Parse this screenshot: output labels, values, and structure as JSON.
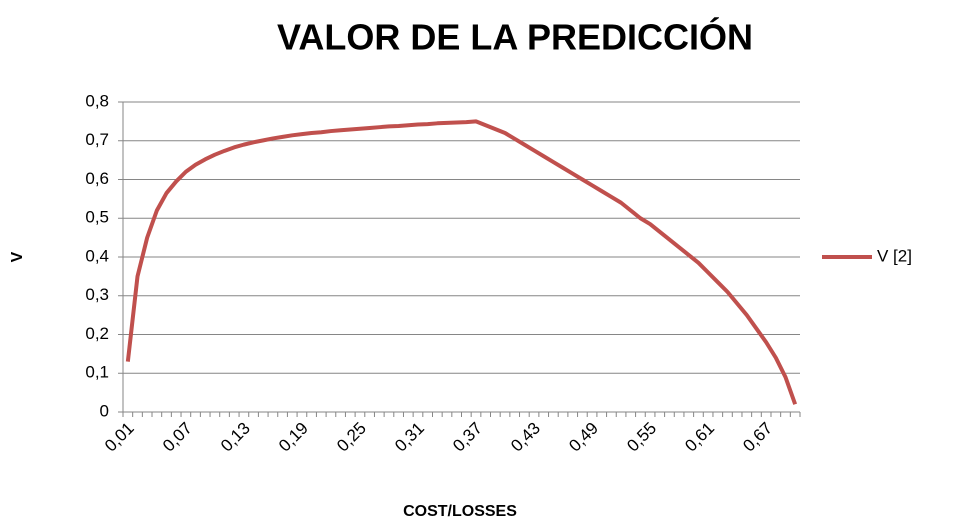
{
  "chart_data": {
    "type": "line",
    "title": "VALOR DE LA PREDICCIÓN",
    "x_label": "COST/LOSSES",
    "y_label": "V",
    "categories": [
      "0,01",
      null,
      null,
      null,
      null,
      null,
      "0,07",
      null,
      null,
      null,
      null,
      null,
      "0,13",
      null,
      null,
      null,
      null,
      null,
      "0,19",
      null,
      null,
      null,
      null,
      null,
      "0,25",
      null,
      null,
      null,
      null,
      null,
      "0,31",
      null,
      null,
      null,
      null,
      null,
      "0,37",
      null,
      null,
      null,
      null,
      null,
      "0,43",
      null,
      null,
      null,
      null,
      null,
      "0,49",
      null,
      null,
      null,
      null,
      null,
      "0,55",
      null,
      null,
      null,
      null,
      null,
      "0,61",
      null,
      null,
      null,
      null,
      null,
      "0,67",
      null,
      null,
      null
    ],
    "series": [
      {
        "name": "V [2]",
        "color": "#c0504d",
        "values": [
          0.13,
          0.35,
          0.45,
          0.52,
          0.565,
          0.595,
          0.62,
          0.638,
          0.652,
          0.664,
          0.674,
          0.683,
          0.69,
          0.696,
          0.701,
          0.706,
          0.71,
          0.714,
          0.717,
          0.72,
          0.722,
          0.725,
          0.727,
          0.729,
          0.731,
          0.733,
          0.735,
          0.737,
          0.738,
          0.74,
          0.742,
          0.743,
          0.745,
          0.746,
          0.747,
          0.748,
          0.75,
          0.74,
          0.73,
          0.72,
          0.705,
          0.69,
          0.675,
          0.66,
          0.645,
          0.63,
          0.615,
          0.6,
          0.585,
          0.57,
          0.555,
          0.54,
          0.52,
          0.5,
          0.485,
          0.465,
          0.445,
          0.425,
          0.405,
          0.385,
          0.36,
          0.335,
          0.31,
          0.28,
          0.25,
          0.215,
          0.18,
          0.14,
          0.09,
          0.02
        ]
      }
    ],
    "ylim": [
      0,
      0.8
    ],
    "yticks": [
      0,
      {
        "value": 0.1,
        "label": "0,1"
      },
      {
        "value": 0.2,
        "label": "0,2"
      },
      {
        "value": 0.3,
        "label": "0,3"
      },
      {
        "value": 0.4,
        "label": "0,4"
      },
      {
        "value": 0.5,
        "label": "0,5"
      },
      {
        "value": 0.6,
        "label": "0,6"
      },
      {
        "value": 0.7,
        "label": "0,7"
      },
      {
        "value": 0.8,
        "label": "0,8"
      }
    ],
    "grid": true,
    "legend": "right"
  }
}
